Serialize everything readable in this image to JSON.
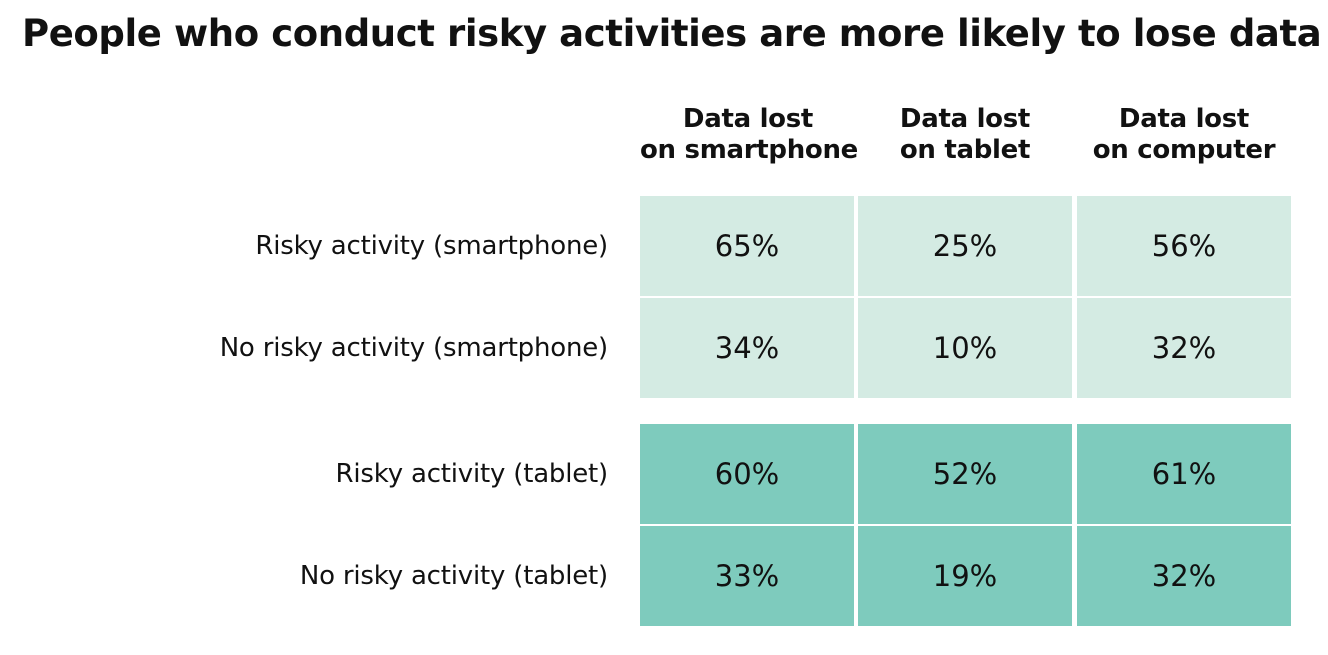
{
  "chart_data": {
    "type": "table",
    "title": "People who conduct risky activities are more likely to lose data",
    "columns": [
      [
        "Data lost",
        "on smartphone"
      ],
      [
        "Data lost",
        "on tablet"
      ],
      [
        "Data lost",
        "on computer"
      ]
    ],
    "rows": [
      {
        "label": "Risky activity (smartphone)",
        "values": [
          "65%",
          "25%",
          "56%"
        ],
        "group": "smartphone"
      },
      {
        "label": "No risky activity (smartphone)",
        "values": [
          "34%",
          "10%",
          "32%"
        ],
        "group": "smartphone"
      },
      {
        "label": "Risky activity (tablet)",
        "values": [
          "60%",
          "52%",
          "61%"
        ],
        "group": "tablet"
      },
      {
        "label": "No risky activity (tablet)",
        "values": [
          "33%",
          "19%",
          "32%"
        ],
        "group": "tablet"
      }
    ],
    "colors": {
      "smartphone_group": "#d4ebe3",
      "tablet_group": "#7ecbbd"
    }
  }
}
